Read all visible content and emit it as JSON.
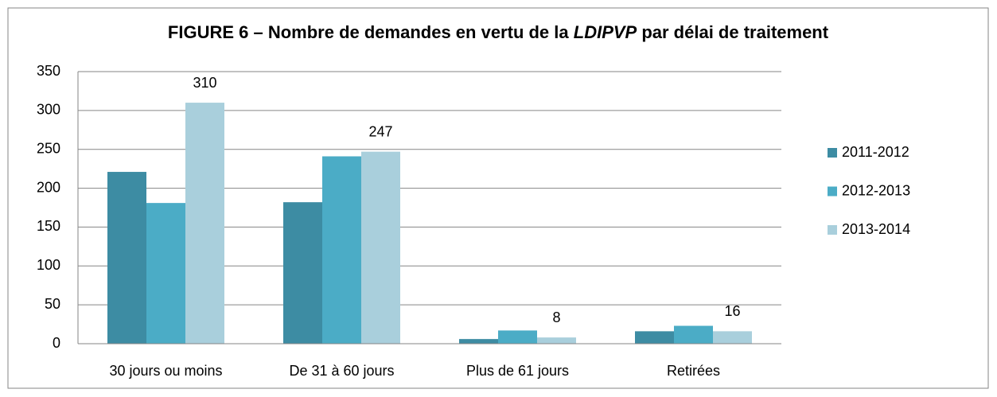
{
  "chart_data": {
    "type": "bar",
    "title": [
      "FIGURE 6 – Nombre de demandes en vertu de la ",
      "LDIPVP",
      " par délai de traitement"
    ],
    "categories": [
      "30 jours ou moins",
      "De 31 à 60 jours",
      "Plus de 61 jours",
      "Retirées"
    ],
    "series": [
      {
        "name": "2011-2012",
        "color": "#3d8ca3",
        "values": [
          221,
          182,
          6,
          16
        ]
      },
      {
        "name": "2012-2013",
        "color": "#4bacc6",
        "values": [
          181,
          241,
          17,
          23
        ]
      },
      {
        "name": "2013-2014",
        "color": "#a9cfdc",
        "values": [
          310,
          247,
          8,
          16
        ],
        "data_labels": true
      }
    ],
    "ylim": [
      0,
      350
    ],
    "yticks": [
      0,
      50,
      100,
      150,
      200,
      250,
      300,
      350
    ],
    "grid": true,
    "legend": "right"
  }
}
